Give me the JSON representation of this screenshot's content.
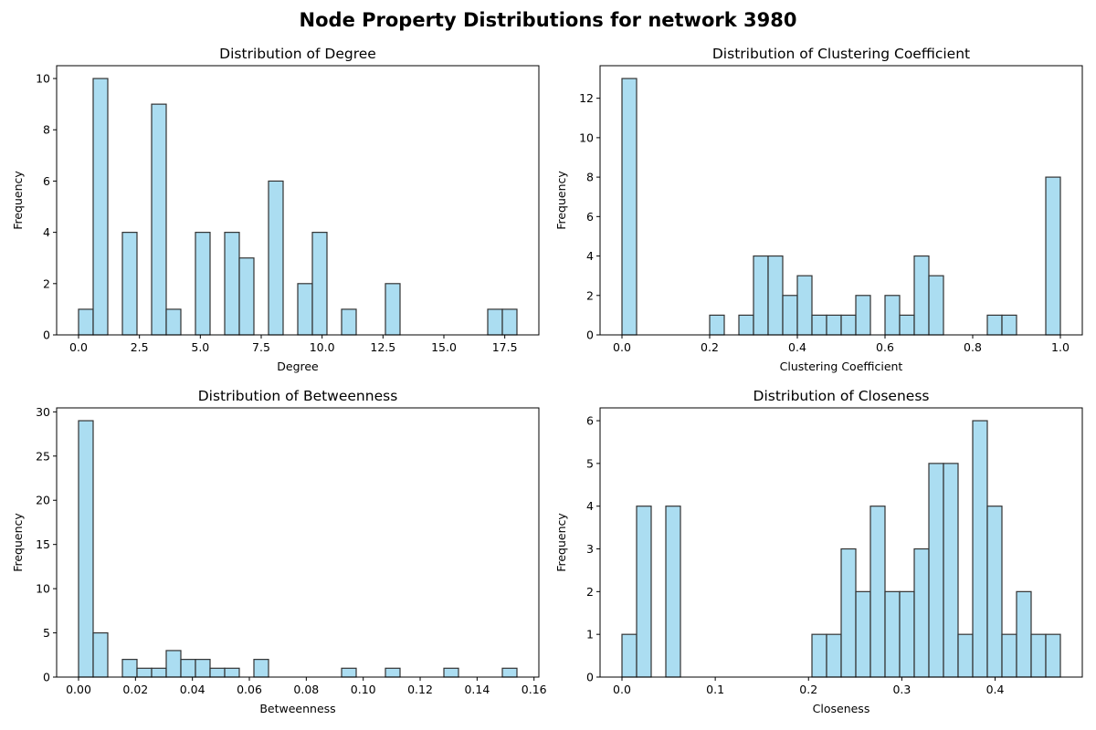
{
  "figure": {
    "suptitle": "Node Property Distributions for network 3980",
    "bar_color": "#87CEEB",
    "edge_color": "#333333"
  },
  "chart_data": [
    {
      "type": "bar",
      "title": "Distribution of Degree",
      "xlabel": "Degree",
      "ylabel": "Frequency",
      "bins": 30,
      "xlim": [
        -0.9,
        18.9
      ],
      "ylim": [
        0,
        10.5
      ],
      "xticks": [
        0,
        2.5,
        5,
        7.5,
        10,
        12.5,
        15,
        17.5
      ],
      "xtick_labels": [
        "0.0",
        "2.5",
        "5.0",
        "7.5",
        "10.0",
        "12.5",
        "15.0",
        "17.5"
      ],
      "yticks": [
        0,
        2,
        4,
        6,
        8,
        10
      ],
      "ytick_labels": [
        "0",
        "2",
        "4",
        "6",
        "8",
        "10"
      ],
      "bin_range": [
        0,
        18
      ],
      "counts": [
        1,
        10,
        0,
        4,
        0,
        9,
        1,
        0,
        4,
        0,
        4,
        3,
        0,
        6,
        0,
        2,
        4,
        0,
        1,
        0,
        0,
        2,
        0,
        0,
        0,
        0,
        0,
        0,
        1,
        1
      ]
    },
    {
      "type": "bar",
      "title": "Distribution of Clustering Coefficient",
      "xlabel": "Clustering Coefficient",
      "ylabel": "Frequency",
      "bins": 30,
      "xlim": [
        -0.05,
        1.05
      ],
      "ylim": [
        0,
        13.65
      ],
      "xticks": [
        0,
        0.2,
        0.4,
        0.6,
        0.8,
        1.0
      ],
      "xtick_labels": [
        "0.0",
        "0.2",
        "0.4",
        "0.6",
        "0.8",
        "1.0"
      ],
      "yticks": [
        0,
        2,
        4,
        6,
        8,
        10,
        12
      ],
      "ytick_labels": [
        "0",
        "2",
        "4",
        "6",
        "8",
        "10",
        "12"
      ],
      "bin_range": [
        0,
        1
      ],
      "counts": [
        13,
        0,
        0,
        0,
        0,
        0,
        1,
        0,
        1,
        4,
        4,
        2,
        3,
        1,
        1,
        1,
        2,
        0,
        2,
        1,
        4,
        3,
        0,
        0,
        0,
        1,
        1,
        0,
        0,
        8
      ]
    },
    {
      "type": "bar",
      "title": "Distribution of Betweenness",
      "xlabel": "Betweenness",
      "ylabel": "Frequency",
      "bins": 30,
      "xlim": [
        -0.0077,
        0.1617
      ],
      "ylim": [
        0,
        30.45
      ],
      "xticks": [
        0,
        0.02,
        0.04,
        0.06,
        0.08,
        0.1,
        0.12,
        0.14,
        0.16
      ],
      "xtick_labels": [
        "0.00",
        "0.02",
        "0.04",
        "0.06",
        "0.08",
        "0.10",
        "0.12",
        "0.14",
        "0.16"
      ],
      "yticks": [
        0,
        5,
        10,
        15,
        20,
        25,
        30
      ],
      "ytick_labels": [
        "0",
        "5",
        "10",
        "15",
        "20",
        "25",
        "30"
      ],
      "bin_range": [
        0,
        0.154
      ],
      "counts": [
        29,
        5,
        0,
        2,
        1,
        1,
        3,
        2,
        2,
        1,
        1,
        0,
        2,
        0,
        0,
        0,
        0,
        0,
        1,
        0,
        0,
        1,
        0,
        0,
        0,
        1,
        0,
        0,
        0,
        1
      ]
    },
    {
      "type": "bar",
      "title": "Distribution of Closeness",
      "xlabel": "Closeness",
      "ylabel": "Frequency",
      "bins": 30,
      "xlim": [
        -0.0235,
        0.4935
      ],
      "ylim": [
        0,
        6.3
      ],
      "xticks": [
        0,
        0.1,
        0.2,
        0.3,
        0.4
      ],
      "xtick_labels": [
        "0.0",
        "0.1",
        "0.2",
        "0.3",
        "0.4"
      ],
      "yticks": [
        0,
        1,
        2,
        3,
        4,
        5,
        6
      ],
      "ytick_labels": [
        "0",
        "1",
        "2",
        "3",
        "4",
        "5",
        "6"
      ],
      "bin_range": [
        0,
        0.47
      ],
      "counts": [
        1,
        4,
        0,
        4,
        0,
        0,
        0,
        0,
        0,
        0,
        0,
        0,
        0,
        1,
        1,
        3,
        2,
        4,
        2,
        2,
        3,
        5,
        5,
        1,
        6,
        4,
        1,
        2,
        1,
        1
      ]
    }
  ]
}
